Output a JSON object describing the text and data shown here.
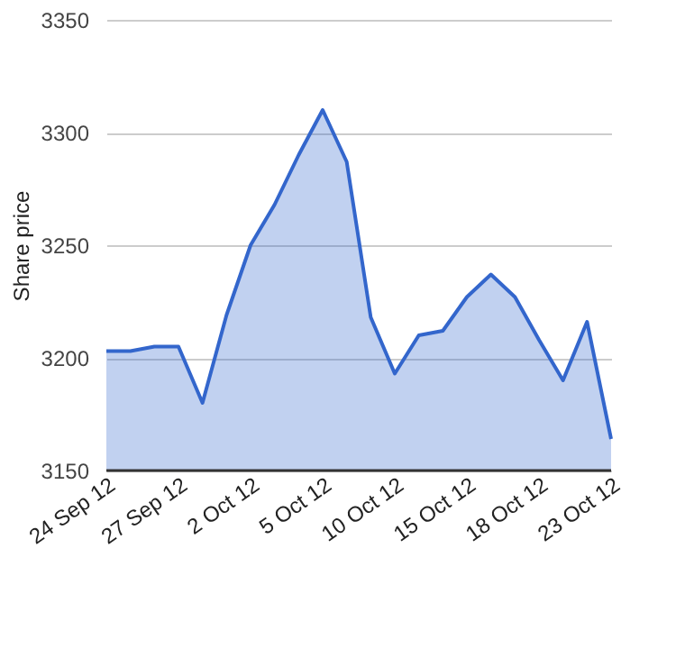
{
  "chart_data": {
    "type": "area",
    "ylabel": "Share price",
    "categories": [
      "24 Sep 12",
      null,
      null,
      "27 Sep 12",
      null,
      null,
      "2 Oct 12",
      null,
      null,
      "5 Oct 12",
      null,
      null,
      "10 Oct 12",
      null,
      null,
      "15 Oct 12",
      null,
      null,
      "18 Oct 12",
      null,
      null,
      "23 Oct 12"
    ],
    "series": [
      {
        "color": "#3366cc",
        "values": [
          3203,
          3203,
          3205,
          3205,
          3180,
          3219,
          3250,
          3268,
          3290,
          3310,
          3287,
          3218,
          3193,
          3210,
          3212,
          3227,
          3237,
          3227,
          3208,
          3190,
          3216,
          3164
        ]
      }
    ],
    "ylim": [
      3150,
      3350
    ],
    "yticks": [
      3150,
      3200,
      3250,
      3300,
      3350
    ],
    "grid": "y"
  }
}
